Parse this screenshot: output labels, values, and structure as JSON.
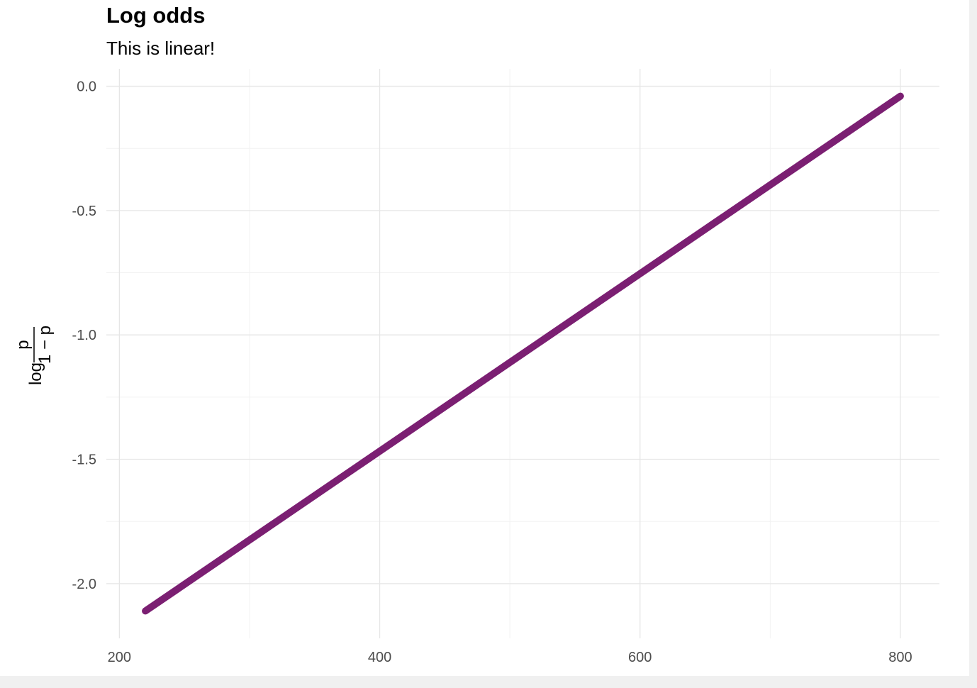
{
  "chart_data": {
    "type": "line",
    "title": "Log odds",
    "subtitle": "This is linear!",
    "xlabel": "",
    "ylabel": {
      "prefix": "log",
      "numerator": "p",
      "denominator": "1 − p"
    },
    "xlim": [
      190,
      830
    ],
    "ylim": [
      -2.22,
      0.07
    ],
    "x_ticks": [
      200,
      400,
      600,
      800
    ],
    "x_tick_labels": [
      "200",
      "400",
      "600",
      "800"
    ],
    "x_minor_ticks": [
      300,
      500,
      700
    ],
    "y_ticks": [
      0.0,
      -0.5,
      -1.0,
      -1.5,
      -2.0
    ],
    "y_tick_labels": [
      "0.0",
      "-0.5",
      "-1.0",
      "-1.5",
      "-2.0"
    ],
    "y_minor_ticks": [
      -0.25,
      -0.75,
      -1.25,
      -1.75
    ],
    "grid": true,
    "legend": "none",
    "series": [
      {
        "x": [
          220,
          800
        ],
        "y": [
          -2.11,
          -0.04
        ],
        "color": "#7b1f72"
      }
    ]
  }
}
